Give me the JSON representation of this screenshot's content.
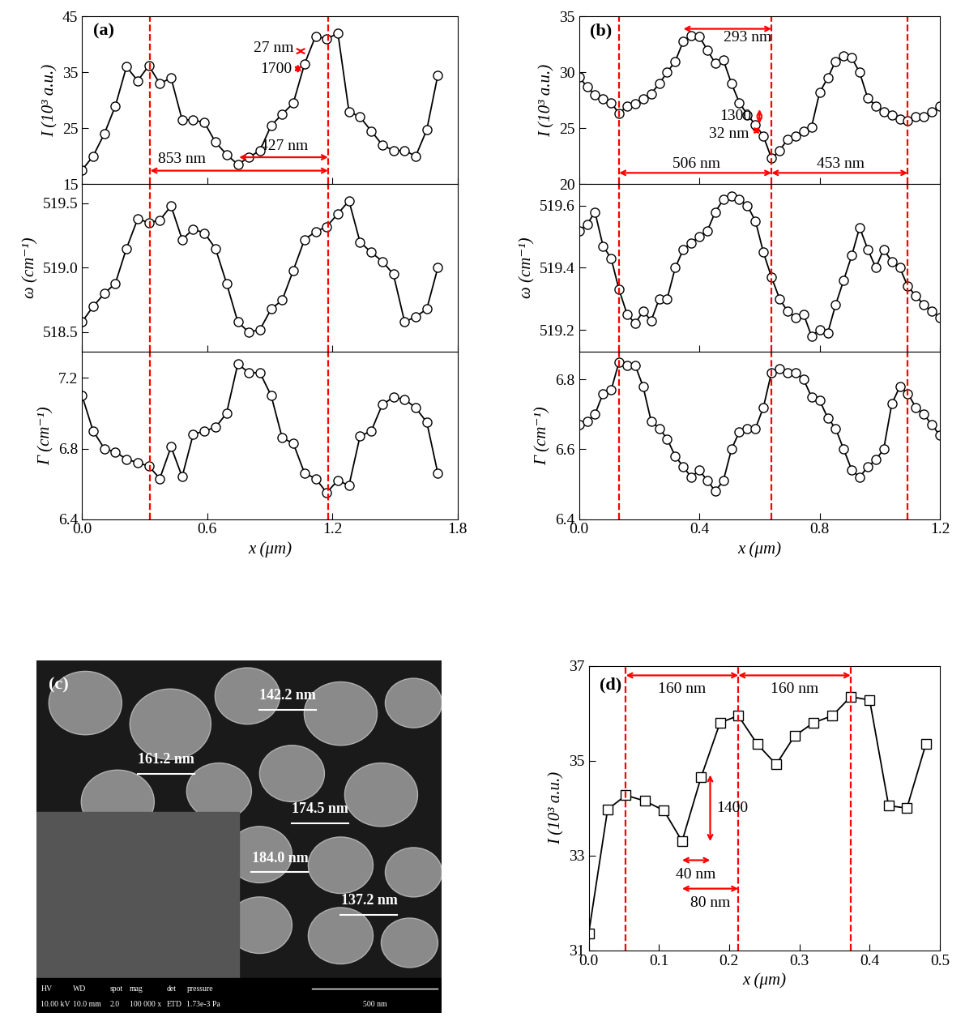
{
  "chart_data": [
    {
      "type": "line",
      "label": "(a)",
      "y_label": "I (10³ a.u.)",
      "color": "#000000",
      "marker": "circle",
      "line_style": "solid",
      "tick_labels": "y",
      "x": [
        0,
        0.053,
        0.107,
        0.16,
        0.213,
        0.267,
        0.32,
        0.373,
        0.427,
        0.48,
        0.533,
        0.587,
        0.64,
        0.693,
        0.747,
        0.8,
        0.853,
        0.907,
        0.96,
        1.013,
        1.067,
        1.12,
        1.173,
        1.227,
        1.28,
        1.333,
        1.387,
        1.44,
        1.493,
        1.547,
        1.6,
        1.653,
        1.706
      ],
      "values": [
        17.5,
        20,
        24,
        29,
        36,
        33.5,
        36.2,
        33,
        34,
        26.5,
        26.5,
        26,
        22.5,
        20.3,
        18.5,
        19.8,
        21,
        25.5,
        27.5,
        29.5,
        36.5,
        41.5,
        41,
        42,
        28,
        27,
        24.5,
        22,
        21,
        21,
        20,
        24.7,
        34.5
      ],
      "xlim": [
        0.0,
        1.8
      ],
      "xticks": [
        0.0,
        0.6,
        1.2,
        1.8
      ],
      "ylim": [
        15,
        45
      ],
      "yticks": [
        15,
        25,
        35,
        45
      ],
      "vlines": [
        0.327,
        1.18
      ],
      "annotations": [
        {
          "text": "853 nm",
          "start": [
            0.327,
            17.4
          ],
          "end": [
            1.18,
            17.4
          ],
          "text_xy": [
            0.48,
            19.4
          ]
        },
        {
          "text": "427 nm",
          "start": [
            0.753,
            19.8
          ],
          "end": [
            1.18,
            19.8
          ],
          "text_xy": [
            0.97,
            21.8
          ]
        },
        {
          "text": "1700",
          "start": [
            1.035,
            34.8
          ],
          "end": [
            1.035,
            36.5
          ],
          "text_xy": [
            0.93,
            35.6
          ]
        },
        {
          "text": "27 nm",
          "start": [
            1.035,
            38.8
          ],
          "end": [
            1.062,
            38.8
          ],
          "text_xy": [
            0.92,
            39.3
          ]
        }
      ]
    },
    {
      "type": "line",
      "y_label": "ω (cm⁻¹)",
      "color": "#000000",
      "marker": "circle",
      "line_style": "solid",
      "tick_labels": "y",
      "x": [
        0,
        0.053,
        0.107,
        0.16,
        0.213,
        0.267,
        0.32,
        0.373,
        0.427,
        0.48,
        0.533,
        0.587,
        0.64,
        0.693,
        0.747,
        0.8,
        0.853,
        0.907,
        0.96,
        1.013,
        1.067,
        1.12,
        1.173,
        1.227,
        1.28,
        1.333,
        1.387,
        1.44,
        1.493,
        1.547,
        1.6,
        1.653,
        1.706
      ],
      "values": [
        518.58,
        518.7,
        518.8,
        518.88,
        519.15,
        519.38,
        519.35,
        519.37,
        519.48,
        519.22,
        519.3,
        519.27,
        519.15,
        518.88,
        518.58,
        518.5,
        518.52,
        518.68,
        518.75,
        518.98,
        519.22,
        519.28,
        519.32,
        519.42,
        519.52,
        519.2,
        519.12,
        519.05,
        518.95,
        518.58,
        518.62,
        518.68,
        519.0
      ],
      "xlim": [
        0.0,
        1.8
      ],
      "xticks": [
        0.0,
        0.6,
        1.2,
        1.8
      ],
      "ylim": [
        518.35,
        519.65
      ],
      "yticks": [
        518.5,
        519.0,
        519.5
      ],
      "vlines": [
        0.327,
        1.18
      ],
      "annotations": []
    },
    {
      "type": "line",
      "y_label": "Γ (cm⁻¹)",
      "x_label": "x (μm)",
      "color": "#000000",
      "marker": "circle",
      "line_style": "solid",
      "x": [
        0,
        0.053,
        0.107,
        0.16,
        0.213,
        0.267,
        0.32,
        0.373,
        0.427,
        0.48,
        0.533,
        0.587,
        0.64,
        0.693,
        0.747,
        0.8,
        0.853,
        0.907,
        0.96,
        1.013,
        1.067,
        1.12,
        1.173,
        1.227,
        1.28,
        1.333,
        1.387,
        1.44,
        1.493,
        1.547,
        1.6,
        1.653,
        1.706
      ],
      "values": [
        7.1,
        6.9,
        6.8,
        6.78,
        6.74,
        6.72,
        6.7,
        6.63,
        6.81,
        6.64,
        6.88,
        6.9,
        6.92,
        7.0,
        7.28,
        7.23,
        7.23,
        7.1,
        6.86,
        6.83,
        6.66,
        6.63,
        6.55,
        6.62,
        6.59,
        6.87,
        6.9,
        7.05,
        7.09,
        7.08,
        7.03,
        6.95,
        6.66
      ],
      "xlim": [
        0.0,
        1.8
      ],
      "xticks": [
        0.0,
        0.6,
        1.2,
        1.8
      ],
      "ylim": [
        6.4,
        7.35
      ],
      "yticks": [
        6.4,
        6.8,
        7.2
      ],
      "vlines": [
        0.327,
        1.18
      ],
      "annotations": []
    },
    {
      "type": "line",
      "label": "(b)",
      "y_label": "I (10³ a.u.)",
      "color": "#000000",
      "marker": "circle",
      "line_style": "solid",
      "tick_labels": "y",
      "x": [
        0,
        0.027,
        0.053,
        0.08,
        0.107,
        0.133,
        0.16,
        0.187,
        0.213,
        0.24,
        0.267,
        0.293,
        0.32,
        0.347,
        0.373,
        0.4,
        0.427,
        0.453,
        0.48,
        0.507,
        0.533,
        0.56,
        0.587,
        0.613,
        0.64,
        0.667,
        0.693,
        0.72,
        0.747,
        0.773,
        0.8,
        0.827,
        0.853,
        0.88,
        0.907,
        0.933,
        0.96,
        0.987,
        1.013,
        1.04,
        1.067,
        1.093,
        1.12,
        1.147,
        1.173,
        1.2
      ],
      "values": [
        29.6,
        28.7,
        28.0,
        27.6,
        27.3,
        26.3,
        27.0,
        27.2,
        27.6,
        28.1,
        29.0,
        30.0,
        31.0,
        32.8,
        33.3,
        33.2,
        32.0,
        30.8,
        31.1,
        29.0,
        27.3,
        26.2,
        25.3,
        24.3,
        22.3,
        23.0,
        24.0,
        24.3,
        24.7,
        25.1,
        28.2,
        29.5,
        31.0,
        31.5,
        31.3,
        30.0,
        27.7,
        27.0,
        26.5,
        26.2,
        25.8,
        25.7,
        26.0,
        26.0,
        26.5,
        27.0
      ],
      "xlim": [
        0.0,
        1.2
      ],
      "xticks": [
        0.0,
        0.4,
        0.8,
        1.2
      ],
      "ylim": [
        20,
        35
      ],
      "yticks": [
        20,
        25,
        30,
        35
      ],
      "vlines": [
        0.133,
        0.64,
        1.093
      ],
      "annotations": [
        {
          "text": "293 nm",
          "start": [
            0.347,
            33.9
          ],
          "end": [
            0.64,
            33.9
          ],
          "text_xy": [
            0.56,
            33.1
          ]
        },
        {
          "text": "1300",
          "start": [
            0.6,
            25.4
          ],
          "end": [
            0.6,
            26.7
          ],
          "text_xy": [
            0.52,
            26.1
          ]
        },
        {
          "text": "32 nm",
          "start": [
            0.575,
            24.8
          ],
          "end": [
            0.605,
            24.8
          ],
          "text_xy": [
            0.5,
            24.5
          ]
        },
        {
          "text": "506 nm",
          "start": [
            0.133,
            21.0
          ],
          "end": [
            0.64,
            21.0
          ],
          "text_xy": [
            0.39,
            21.8
          ]
        },
        {
          "text": "453 nm",
          "start": [
            0.64,
            21.0
          ],
          "end": [
            1.093,
            21.0
          ],
          "text_xy": [
            0.87,
            21.8
          ]
        }
      ]
    },
    {
      "type": "line",
      "y_label": "ω (cm⁻¹)",
      "color": "#000000",
      "marker": "circle",
      "line_style": "solid",
      "tick_labels": "y",
      "x": [
        0,
        0.027,
        0.053,
        0.08,
        0.107,
        0.133,
        0.16,
        0.187,
        0.213,
        0.24,
        0.267,
        0.293,
        0.32,
        0.347,
        0.373,
        0.4,
        0.427,
        0.453,
        0.48,
        0.507,
        0.533,
        0.56,
        0.587,
        0.613,
        0.64,
        0.667,
        0.693,
        0.72,
        0.747,
        0.773,
        0.8,
        0.827,
        0.853,
        0.88,
        0.907,
        0.933,
        0.96,
        0.987,
        1.013,
        1.04,
        1.067,
        1.093,
        1.12,
        1.147,
        1.173,
        1.2
      ],
      "values": [
        519.52,
        519.54,
        519.58,
        519.47,
        519.43,
        519.33,
        519.25,
        519.22,
        519.26,
        519.23,
        519.3,
        519.3,
        519.4,
        519.46,
        519.48,
        519.5,
        519.52,
        519.58,
        519.62,
        519.63,
        519.62,
        519.6,
        519.55,
        519.45,
        519.37,
        519.3,
        519.26,
        519.24,
        519.25,
        519.18,
        519.2,
        519.19,
        519.28,
        519.36,
        519.44,
        519.53,
        519.46,
        519.4,
        519.46,
        519.42,
        519.4,
        519.34,
        519.31,
        519.28,
        519.26,
        519.24
      ],
      "xlim": [
        0.0,
        1.2
      ],
      "xticks": [
        0.0,
        0.4,
        0.8,
        1.2
      ],
      "ylim": [
        519.13,
        519.67
      ],
      "yticks": [
        519.2,
        519.4,
        519.6
      ],
      "vlines": [
        0.133,
        0.64,
        1.093
      ],
      "annotations": []
    },
    {
      "type": "line",
      "y_label": "Γ (cm⁻¹)",
      "x_label": "x (μm)",
      "color": "#000000",
      "marker": "circle",
      "line_style": "solid",
      "x": [
        0,
        0.027,
        0.053,
        0.08,
        0.107,
        0.133,
        0.16,
        0.187,
        0.213,
        0.24,
        0.267,
        0.293,
        0.32,
        0.347,
        0.373,
        0.4,
        0.427,
        0.453,
        0.48,
        0.507,
        0.533,
        0.56,
        0.587,
        0.613,
        0.64,
        0.667,
        0.693,
        0.72,
        0.747,
        0.773,
        0.8,
        0.827,
        0.853,
        0.88,
        0.907,
        0.933,
        0.96,
        0.987,
        1.013,
        1.04,
        1.067,
        1.093,
        1.12,
        1.147,
        1.173,
        1.2
      ],
      "values": [
        6.67,
        6.68,
        6.7,
        6.76,
        6.77,
        6.85,
        6.84,
        6.84,
        6.78,
        6.68,
        6.66,
        6.63,
        6.58,
        6.55,
        6.52,
        6.54,
        6.51,
        6.48,
        6.51,
        6.6,
        6.65,
        6.66,
        6.66,
        6.72,
        6.82,
        6.83,
        6.82,
        6.82,
        6.8,
        6.75,
        6.74,
        6.69,
        6.66,
        6.6,
        6.54,
        6.52,
        6.55,
        6.57,
        6.6,
        6.73,
        6.78,
        6.76,
        6.72,
        6.7,
        6.67,
        6.64
      ],
      "xlim": [
        0.0,
        1.2
      ],
      "xticks": [
        0.0,
        0.4,
        0.8,
        1.2
      ],
      "ylim": [
        6.4,
        6.88
      ],
      "yticks": [
        6.4,
        6.6,
        6.8
      ],
      "vlines": [
        0.133,
        0.64,
        1.093
      ],
      "annotations": []
    },
    {
      "type": "line",
      "label": "(d)",
      "y_label": "I (10³ a.u.)",
      "x_label": "x (μm)",
      "color": "#000000",
      "marker": "square",
      "line_style": "solid",
      "x": [
        0,
        0.027,
        0.053,
        0.08,
        0.107,
        0.133,
        0.16,
        0.187,
        0.213,
        0.24,
        0.267,
        0.293,
        0.32,
        0.347,
        0.373,
        0.4,
        0.427,
        0.453,
        0.48
      ],
      "values": [
        31.35,
        33.97,
        34.27,
        34.15,
        33.95,
        33.3,
        34.65,
        35.8,
        35.95,
        35.35,
        34.92,
        35.52,
        35.8,
        35.95,
        36.35,
        36.28,
        34.05,
        34.0,
        35.35
      ],
      "xlim": [
        0.0,
        0.5
      ],
      "xticks": [
        0.0,
        0.1,
        0.2,
        0.3,
        0.4,
        0.5
      ],
      "ylim": [
        31,
        37
      ],
      "yticks": [
        31,
        33,
        35,
        37
      ],
      "vlines": [
        0.053,
        0.213,
        0.373
      ],
      "annotations": [
        {
          "text": "160 nm",
          "start": [
            0.053,
            36.8
          ],
          "end": [
            0.213,
            36.8
          ],
          "text_xy": [
            0.133,
            36.5
          ]
        },
        {
          "text": "160 nm",
          "start": [
            0.213,
            36.8
          ],
          "end": [
            0.373,
            36.8
          ],
          "text_xy": [
            0.293,
            36.5
          ]
        },
        {
          "text": "1400",
          "start": [
            0.173,
            33.3
          ],
          "end": [
            0.173,
            34.7
          ],
          "text_xy": [
            0.205,
            34.0
          ]
        },
        {
          "text": "40 nm",
          "start": [
            0.133,
            32.9
          ],
          "end": [
            0.173,
            32.9
          ],
          "text_xy": [
            0.153,
            32.6
          ]
        },
        {
          "text": "80 nm",
          "start": [
            0.133,
            32.3
          ],
          "end": [
            0.213,
            32.3
          ],
          "text_xy": [
            0.173,
            32.0
          ]
        }
      ]
    }
  ],
  "image": {
    "label": "(c)",
    "measurements": [
      "142.2 nm",
      "161.2 nm",
      "174.5 nm",
      "184.0 nm",
      "137.2 nm"
    ],
    "info_headers": [
      "HV",
      "WD",
      "spot",
      "mag",
      "det",
      "pressure"
    ],
    "info_values": [
      "10.00 kV",
      "10.0 mm",
      "2.0",
      "100 000 x",
      "ETD",
      "1.73e-3 Pa"
    ],
    "scale_bar": "500 nm"
  }
}
